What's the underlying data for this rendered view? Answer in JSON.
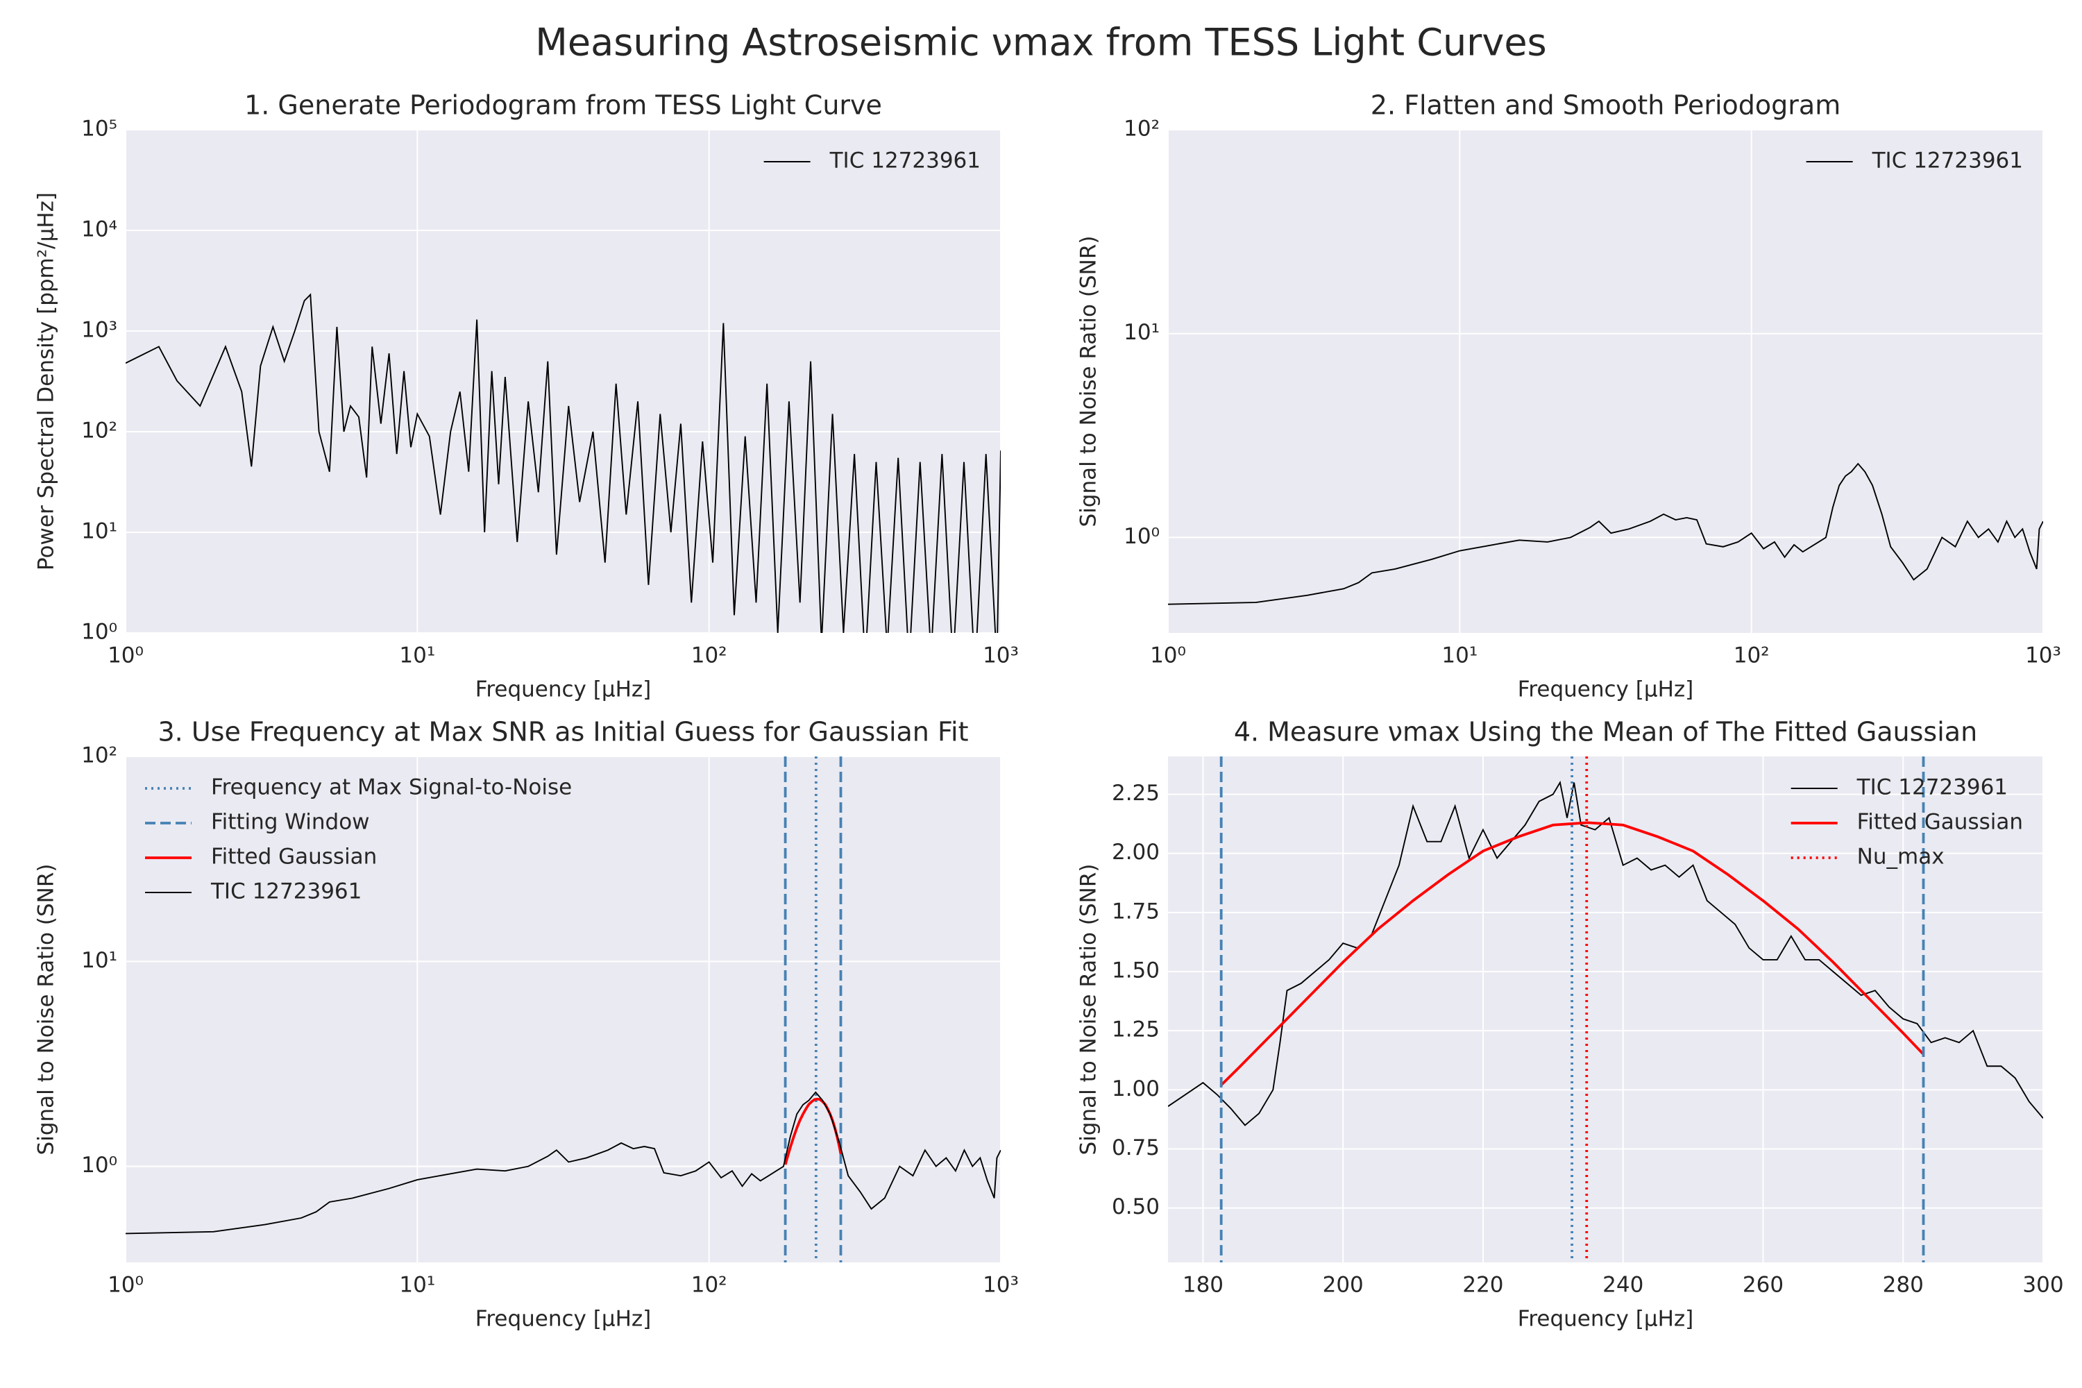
{
  "title": "Measuring Astroseismic νmax from TESS Light Curves",
  "chart_data": [
    {
      "type": "line",
      "title": "1. Generate Periodogram from TESS Light Curve",
      "xlabel": "Frequency [μHz]",
      "ylabel": "Power Spectral Density [ppm²/μHz]",
      "xscale": "log",
      "yscale": "log",
      "xlim": [
        1,
        1000
      ],
      "ylim": [
        1,
        100000
      ],
      "xticks": [
        {
          "value": 1,
          "label": "10⁰"
        },
        {
          "value": 10,
          "label": "10¹"
        },
        {
          "value": 100,
          "label": "10²"
        },
        {
          "value": 1000,
          "label": "10³"
        }
      ],
      "yticks": [
        {
          "value": 1,
          "label": "10⁰"
        },
        {
          "value": 10,
          "label": "10¹"
        },
        {
          "value": 100,
          "label": "10²"
        },
        {
          "value": 1000,
          "label": "10³"
        },
        {
          "value": 10000,
          "label": "10⁴"
        },
        {
          "value": 100000,
          "label": "10⁵"
        }
      ],
      "grid": true,
      "legend": "upper right",
      "series": [
        {
          "name": "TIC 12723961",
          "color": "#000000",
          "linestyle": "solid",
          "x": [
            1,
            1.3,
            1.5,
            1.8,
            2.2,
            2.5,
            2.7,
            2.9,
            3.2,
            3.5,
            3.8,
            4.1,
            4.3,
            4.6,
            5.0,
            5.3,
            5.6,
            5.9,
            6.3,
            6.7,
            7.0,
            7.5,
            8.0,
            8.5,
            9,
            9.5,
            10,
            11,
            12,
            13,
            14,
            15,
            16,
            17,
            18,
            19,
            20,
            22,
            24,
            26,
            28,
            30,
            33,
            36,
            40,
            44,
            48,
            52,
            57,
            62,
            68,
            74,
            80,
            87,
            95,
            103,
            112,
            122,
            133,
            145,
            158,
            172,
            188,
            205,
            223,
            243,
            265,
            289,
            315,
            343,
            374,
            408,
            445,
            485,
            529,
            577,
            629,
            686,
            748,
            816,
            890,
            970,
            1000
          ],
          "values": [
            480,
            700,
            320,
            180,
            700,
            250,
            45,
            450,
            1100,
            500,
            1000,
            2000,
            2300,
            100,
            40,
            1100,
            100,
            180,
            140,
            35,
            700,
            120,
            600,
            60,
            400,
            70,
            150,
            90,
            15,
            100,
            250,
            40,
            1300,
            10,
            400,
            30,
            350,
            8,
            200,
            25,
            500,
            6,
            180,
            20,
            100,
            5,
            300,
            15,
            200,
            3,
            150,
            10,
            120,
            2,
            80,
            5,
            1200,
            1.5,
            90,
            2,
            300,
            1,
            200,
            2,
            500,
            0.8,
            150,
            1,
            60,
            0.5,
            50,
            0.7,
            55,
            0.5,
            50,
            0.6,
            60,
            0.5,
            50,
            0.4,
            60,
            0.5,
            65
          ]
        }
      ]
    },
    {
      "type": "line",
      "title": "2. Flatten and Smooth Periodogram",
      "xlabel": "Frequency [μHz]",
      "ylabel": "Signal to Noise Ratio (SNR)",
      "xscale": "log",
      "yscale": "log",
      "xlim": [
        1,
        1000
      ],
      "ylim": [
        0.34,
        100
      ],
      "xticks": [
        {
          "value": 1,
          "label": "10⁰"
        },
        {
          "value": 10,
          "label": "10¹"
        },
        {
          "value": 100,
          "label": "10²"
        },
        {
          "value": 1000,
          "label": "10³"
        }
      ],
      "yticks": [
        {
          "value": 1,
          "label": "10⁰"
        },
        {
          "value": 10,
          "label": "10¹"
        },
        {
          "value": 100,
          "label": "10²"
        }
      ],
      "grid": true,
      "legend": "upper right",
      "series": [
        {
          "name": "TIC 12723961",
          "color": "#000000",
          "linestyle": "solid",
          "x": [
            1,
            2,
            3,
            4,
            4.5,
            5,
            6,
            8,
            10,
            13,
            16,
            20,
            24,
            28,
            30,
            33,
            38,
            45,
            50,
            55,
            60,
            65,
            70,
            80,
            90,
            100,
            110,
            120,
            130,
            140,
            150,
            160,
            170,
            180,
            190,
            200,
            210,
            220,
            232,
            245,
            260,
            280,
            300,
            330,
            360,
            400,
            450,
            500,
            550,
            600,
            650,
            700,
            750,
            800,
            850,
            900,
            950,
            970,
            1000
          ],
          "values": [
            0.47,
            0.48,
            0.52,
            0.56,
            0.6,
            0.67,
            0.7,
            0.78,
            0.86,
            0.92,
            0.97,
            0.95,
            1.0,
            1.12,
            1.2,
            1.05,
            1.1,
            1.2,
            1.3,
            1.22,
            1.25,
            1.22,
            0.93,
            0.9,
            0.95,
            1.05,
            0.88,
            0.95,
            0.8,
            0.92,
            0.85,
            0.9,
            0.95,
            1.0,
            1.4,
            1.8,
            2.0,
            2.1,
            2.3,
            2.1,
            1.8,
            1.3,
            0.9,
            0.75,
            0.62,
            0.7,
            1.0,
            0.9,
            1.2,
            1.0,
            1.1,
            0.95,
            1.2,
            1.0,
            1.1,
            0.85,
            0.7,
            1.1,
            1.2
          ]
        }
      ]
    },
    {
      "type": "line",
      "title": "3. Use Frequency at Max SNR as Initial Guess for Gaussian Fit",
      "xlabel": "Frequency [μHz]",
      "ylabel": "Signal to Noise Ratio (SNR)",
      "xscale": "log",
      "yscale": "log",
      "xlim": [
        1,
        1000
      ],
      "ylim": [
        0.34,
        100
      ],
      "xticks": [
        {
          "value": 1,
          "label": "10⁰"
        },
        {
          "value": 10,
          "label": "10¹"
        },
        {
          "value": 100,
          "label": "10²"
        },
        {
          "value": 1000,
          "label": "10³"
        }
      ],
      "yticks": [
        {
          "value": 1,
          "label": "10⁰"
        },
        {
          "value": 10,
          "label": "10¹"
        },
        {
          "value": 100,
          "label": "10²"
        }
      ],
      "grid": true,
      "legend": "upper left",
      "series": [
        {
          "name": "Frequency at Max Signal-to-Noise",
          "kind": "vline",
          "color": "#4682b4",
          "linestyle": "dotted",
          "x": [
            232.7
          ]
        },
        {
          "name": "Fitting Window",
          "kind": "vline",
          "color": "#4682b4",
          "linestyle": "dashed",
          "x": [
            182.6,
            282.9
          ]
        },
        {
          "name": "Fitted Gaussian",
          "color": "#ff0000",
          "linestyle": "solid",
          "x": [
            182.6,
            185,
            190,
            195,
            200,
            205,
            210,
            215,
            220,
            225,
            230,
            235,
            240,
            245,
            250,
            255,
            260,
            265,
            270,
            275,
            280,
            282.9
          ],
          "values": [
            1.02,
            1.09,
            1.24,
            1.39,
            1.54,
            1.68,
            1.8,
            1.91,
            2.01,
            2.07,
            2.12,
            2.13,
            2.12,
            2.07,
            2.01,
            1.91,
            1.8,
            1.68,
            1.54,
            1.39,
            1.24,
            1.15
          ]
        },
        {
          "name": "TIC 12723961",
          "color": "#000000",
          "linestyle": "solid",
          "x": [
            1,
            2,
            3,
            4,
            4.5,
            5,
            6,
            8,
            10,
            13,
            16,
            20,
            24,
            28,
            30,
            33,
            38,
            45,
            50,
            55,
            60,
            65,
            70,
            80,
            90,
            100,
            110,
            120,
            130,
            140,
            150,
            160,
            170,
            180,
            190,
            200,
            210,
            220,
            232,
            245,
            260,
            280,
            300,
            330,
            360,
            400,
            450,
            500,
            550,
            600,
            650,
            700,
            750,
            800,
            850,
            900,
            950,
            970,
            1000
          ],
          "values": [
            0.47,
            0.48,
            0.52,
            0.56,
            0.6,
            0.67,
            0.7,
            0.78,
            0.86,
            0.92,
            0.97,
            0.95,
            1.0,
            1.12,
            1.2,
            1.05,
            1.1,
            1.2,
            1.3,
            1.22,
            1.25,
            1.22,
            0.93,
            0.9,
            0.95,
            1.05,
            0.88,
            0.95,
            0.8,
            0.92,
            0.85,
            0.9,
            0.95,
            1.0,
            1.4,
            1.8,
            2.0,
            2.1,
            2.3,
            2.1,
            1.8,
            1.3,
            0.9,
            0.75,
            0.62,
            0.7,
            1.0,
            0.9,
            1.2,
            1.0,
            1.1,
            0.95,
            1.2,
            1.0,
            1.1,
            0.85,
            0.7,
            1.1,
            1.2
          ]
        }
      ]
    },
    {
      "type": "line",
      "title": "4. Measure νmax Using the Mean of The Fitted Gaussian",
      "xlabel": "Frequency [μHz]",
      "ylabel": "Signal to Noise Ratio (SNR)",
      "xscale": "linear",
      "yscale": "linear",
      "xlim": [
        175,
        300
      ],
      "ylim": [
        0.27,
        2.41
      ],
      "xticks": [
        180,
        200,
        220,
        240,
        260,
        280,
        300
      ],
      "yticks": [
        {
          "value": 0.5,
          "label": "0.50"
        },
        0.75,
        {
          "value": 1,
          "label": "1.00"
        },
        1.25,
        {
          "value": 1.5,
          "label": "1.50"
        },
        1.75,
        {
          "value": 2,
          "label": "2.00"
        },
        2.25
      ],
      "grid": true,
      "legend": "upper right",
      "series": [
        {
          "name": "TIC 12723961",
          "color": "#000000",
          "linestyle": "solid",
          "x": [
            175,
            177,
            180,
            182,
            184,
            186,
            188,
            190,
            191,
            192,
            194,
            196,
            198,
            200,
            202,
            204,
            206,
            208,
            210,
            212,
            214,
            216,
            218,
            220,
            222,
            224,
            226,
            228,
            230,
            231,
            232,
            233,
            234,
            236,
            238,
            240,
            242,
            244,
            246,
            248,
            250,
            252,
            254,
            256,
            258,
            260,
            262,
            264,
            266,
            268,
            270,
            272,
            274,
            276,
            278,
            280,
            282,
            284,
            286,
            288,
            290,
            292,
            294,
            296,
            298,
            300
          ],
          "values": [
            0.93,
            0.97,
            1.03,
            0.98,
            0.92,
            0.85,
            0.9,
            1.0,
            1.2,
            1.42,
            1.45,
            1.5,
            1.55,
            1.62,
            1.6,
            1.65,
            1.8,
            1.95,
            2.2,
            2.05,
            2.05,
            2.2,
            1.98,
            2.1,
            1.98,
            2.05,
            2.12,
            2.22,
            2.25,
            2.3,
            2.15,
            2.3,
            2.12,
            2.1,
            2.15,
            1.95,
            1.98,
            1.93,
            1.95,
            1.9,
            1.95,
            1.8,
            1.75,
            1.7,
            1.6,
            1.55,
            1.55,
            1.65,
            1.55,
            1.55,
            1.5,
            1.45,
            1.4,
            1.42,
            1.35,
            1.3,
            1.28,
            1.2,
            1.22,
            1.2,
            1.25,
            1.1,
            1.1,
            1.05,
            0.95,
            0.88
          ]
        },
        {
          "name": "Fitted Gaussian",
          "color": "#ff0000",
          "linestyle": "solid",
          "x": [
            182.6,
            185,
            190,
            195,
            200,
            205,
            210,
            215,
            220,
            225,
            230,
            235,
            240,
            245,
            250,
            255,
            260,
            265,
            270,
            275,
            280,
            282.9
          ],
          "values": [
            1.02,
            1.09,
            1.24,
            1.39,
            1.54,
            1.68,
            1.8,
            1.91,
            2.01,
            2.07,
            2.12,
            2.13,
            2.12,
            2.07,
            2.01,
            1.91,
            1.8,
            1.68,
            1.54,
            1.39,
            1.24,
            1.15
          ]
        },
        {
          "name": "Nu_max",
          "kind": "vline",
          "color": "#ff0000",
          "linestyle": "dotted",
          "x": [
            234.8
          ]
        },
        {
          "kind": "vline",
          "color": "#4682b4",
          "linestyle": "dotted",
          "x": [
            232.7
          ]
        },
        {
          "kind": "vline",
          "color": "#4682b4",
          "linestyle": "dashed",
          "x": [
            182.6,
            282.9
          ]
        }
      ]
    }
  ]
}
